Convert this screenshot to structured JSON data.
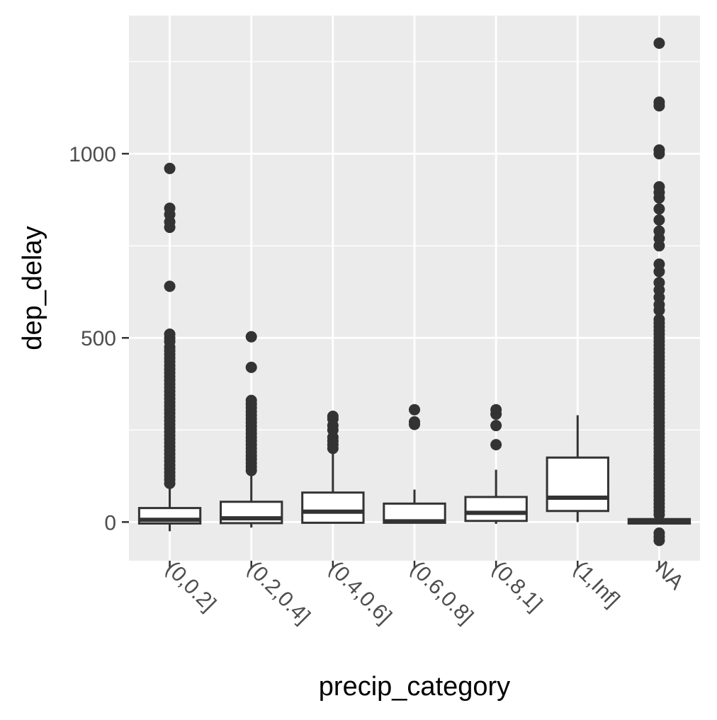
{
  "chart_data": {
    "type": "boxplot",
    "xlabel": "precip_category",
    "ylabel": "dep_delay",
    "ylim": [
      -105,
      1375
    ],
    "yticks": [
      0,
      500,
      1000
    ],
    "grid": true,
    "legend": "none",
    "colors": {
      "panel": "#ebebeb",
      "grid": "#ffffff",
      "box_fill": "#ffffff",
      "line": "#333333",
      "tick_text": "#4d4d4d",
      "title_text": "#000000"
    },
    "categories": [
      "(0,0.2]",
      "(0.2,0.4]",
      "(0.4,0.6]",
      "(0.6,0.8]",
      "(0.8,1]",
      "(1,Inf]",
      "NA"
    ],
    "boxes": [
      {
        "category": "(0,0.2]",
        "whisker_low": -25,
        "q1": -4,
        "median": 6,
        "q3": 38,
        "whisker_high": 100,
        "outliers": [
          105,
          115,
          125,
          135,
          145,
          155,
          165,
          175,
          185,
          195,
          205,
          215,
          225,
          235,
          245,
          255,
          265,
          275,
          285,
          295,
          305,
          315,
          325,
          335,
          345,
          355,
          365,
          375,
          385,
          395,
          405,
          415,
          425,
          435,
          445,
          455,
          465,
          475,
          490,
          500,
          510,
          640,
          800,
          815,
          835,
          852,
          960
        ]
      },
      {
        "category": "(0.2,0.4]",
        "whisker_low": -15,
        "q1": -3,
        "median": 10,
        "q3": 55,
        "whisker_high": 135,
        "outliers": [
          140,
          150,
          160,
          170,
          180,
          190,
          200,
          210,
          220,
          230,
          240,
          250,
          260,
          270,
          280,
          290,
          300,
          310,
          320,
          330,
          420,
          503
        ]
      },
      {
        "category": "(0.4,0.6]",
        "whisker_low": -3,
        "q1": -2,
        "median": 28,
        "q3": 80,
        "whisker_high": 195,
        "outliers": [
          200,
          210,
          220,
          230,
          250,
          262,
          280,
          287
        ]
      },
      {
        "category": "(0.6,0.8]",
        "whisker_low": -3,
        "q1": -2,
        "median": 2,
        "q3": 50,
        "whisker_high": 88,
        "outliers": [
          265,
          272,
          305
        ]
      },
      {
        "category": "(0.8,1]",
        "whisker_low": -5,
        "q1": 3,
        "median": 25,
        "q3": 68,
        "whisker_high": 142,
        "outliers": [
          210,
          262,
          293,
          305
        ]
      },
      {
        "category": "(1,Inf]",
        "whisker_low": 0,
        "q1": 30,
        "median": 66,
        "q3": 175,
        "whisker_high": 290,
        "outliers": []
      },
      {
        "category": "NA",
        "whisker_low": -6,
        "q1": -4,
        "median": 2,
        "q3": 8,
        "whisker_high": 15,
        "outliers": [
          -50,
          -40,
          -30,
          20,
          30,
          40,
          50,
          60,
          70,
          80,
          90,
          100,
          110,
          120,
          130,
          140,
          150,
          160,
          170,
          180,
          190,
          200,
          210,
          220,
          230,
          240,
          250,
          260,
          270,
          280,
          290,
          300,
          310,
          320,
          330,
          340,
          350,
          360,
          370,
          380,
          390,
          400,
          410,
          420,
          430,
          440,
          450,
          460,
          470,
          480,
          490,
          500,
          510,
          520,
          530,
          540,
          550,
          575,
          590,
          610,
          630,
          650,
          680,
          700,
          750,
          770,
          790,
          820,
          850,
          880,
          895,
          910,
          1000,
          1010,
          1130,
          1140,
          1300
        ]
      }
    ]
  }
}
